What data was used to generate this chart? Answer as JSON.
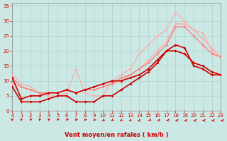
{
  "bg_color": "#cce8e4",
  "grid_color": "#aad4d0",
  "xlabel": "Vent moyen/en rafales ( km/h )",
  "xlabel_color": "#cc0000",
  "tick_color": "#cc0000",
  "xlim": [
    0,
    23
  ],
  "ylim": [
    0,
    36
  ],
  "yticks": [
    0,
    5,
    10,
    15,
    20,
    25,
    30,
    35
  ],
  "xticks": [
    0,
    1,
    2,
    3,
    4,
    5,
    6,
    7,
    8,
    9,
    10,
    11,
    12,
    13,
    14,
    15,
    16,
    17,
    18,
    19,
    20,
    21,
    22,
    23
  ],
  "lines": [
    {
      "x": [
        0,
        1,
        2,
        3,
        4,
        5,
        6,
        7,
        8,
        9,
        10,
        11,
        12,
        13,
        14,
        15,
        16,
        17,
        18,
        19,
        20,
        21,
        22,
        23
      ],
      "y": [
        8,
        3,
        3,
        3,
        4,
        5,
        5,
        3,
        3,
        3,
        5,
        5,
        7,
        9,
        11,
        13,
        16,
        20,
        22,
        21,
        15,
        14,
        12,
        12
      ],
      "color": "#cc0000",
      "lw": 1.2,
      "marker": "D",
      "ms": 2.0,
      "zorder": 4
    },
    {
      "x": [
        0,
        1,
        2,
        3,
        4,
        5,
        6,
        7,
        8,
        9,
        10,
        11,
        12,
        13,
        14,
        15,
        16,
        17,
        18,
        19,
        20,
        21,
        22,
        23
      ],
      "y": [
        11,
        4,
        5,
        5,
        6,
        6,
        7,
        6,
        7,
        8,
        9,
        10,
        10,
        11,
        12,
        14,
        17,
        20,
        20,
        19,
        16,
        15,
        13,
        12
      ],
      "color": "#cc0000",
      "lw": 1.2,
      "marker": "D",
      "ms": 2.0,
      "zorder": 4
    },
    {
      "x": [
        0,
        1,
        2,
        3,
        4,
        5,
        6,
        7,
        8,
        9,
        10,
        11,
        12,
        13,
        14,
        15,
        16,
        17,
        18,
        19,
        20,
        21,
        22,
        23
      ],
      "y": [
        12,
        9,
        8,
        6,
        5,
        5,
        6,
        14,
        6,
        5,
        5,
        10,
        12,
        14,
        19,
        22,
        25,
        27,
        33,
        30,
        27,
        26,
        20,
        18
      ],
      "color": "#ffaaaa",
      "lw": 0.9,
      "marker": "D",
      "ms": 1.8,
      "zorder": 3
    },
    {
      "x": [
        0,
        1,
        2,
        3,
        4,
        5,
        6,
        7,
        8,
        9,
        10,
        11,
        12,
        13,
        14,
        15,
        16,
        17,
        18,
        19,
        20,
        21,
        22,
        23
      ],
      "y": [
        9,
        8,
        7,
        6,
        6,
        6,
        7,
        6,
        7,
        7,
        8,
        9,
        10,
        12,
        14,
        17,
        20,
        23,
        29,
        29,
        27,
        24,
        21,
        18
      ],
      "color": "#ffaaaa",
      "lw": 0.9,
      "marker": "D",
      "ms": 1.8,
      "zorder": 3
    },
    {
      "x": [
        0,
        1,
        2,
        3,
        4,
        5,
        6,
        7,
        8,
        9,
        10,
        11,
        12,
        13,
        14,
        15,
        16,
        17,
        18,
        19,
        20,
        21,
        22,
        23
      ],
      "y": [
        11,
        8,
        7,
        6,
        6,
        6,
        7,
        6,
        7,
        7,
        8,
        9,
        11,
        12,
        14,
        16,
        19,
        22,
        28,
        28,
        25,
        22,
        19,
        18
      ],
      "color": "#ff7777",
      "lw": 0.9,
      "marker": "D",
      "ms": 1.8,
      "zorder": 3
    }
  ],
  "arrow_color": "#cc0000",
  "arrow_angles": [
    270,
    270,
    265,
    265,
    265,
    265,
    262,
    260,
    258,
    255,
    250,
    245,
    238,
    230,
    220,
    210,
    200,
    195,
    190,
    185,
    182,
    180,
    178,
    175
  ]
}
